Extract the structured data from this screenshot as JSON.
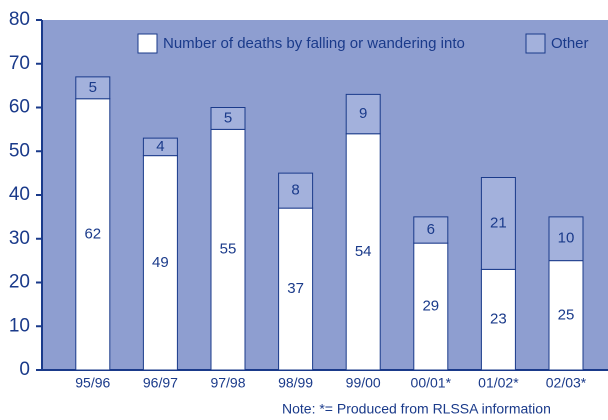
{
  "chart_data": {
    "type": "stacked_bar",
    "categories": [
      "95/96",
      "96/97",
      "97/98",
      "98/99",
      "99/00",
      "00/01*",
      "01/02*",
      "02/03*"
    ],
    "series": [
      {
        "name": "Number of deaths by falling or wandering into",
        "color": "#ffffff",
        "values": [
          62,
          49,
          55,
          37,
          54,
          29,
          23,
          25
        ]
      },
      {
        "name": "Other",
        "color": "#a3b1dc",
        "values": [
          5,
          4,
          5,
          8,
          9,
          6,
          21,
          10
        ]
      }
    ],
    "ylim": [
      0,
      80
    ],
    "yticks": [
      0,
      10,
      20,
      30,
      40,
      50,
      60,
      70,
      80
    ],
    "legend": "top",
    "note": "Note: *= Produced from RLSSA information"
  }
}
